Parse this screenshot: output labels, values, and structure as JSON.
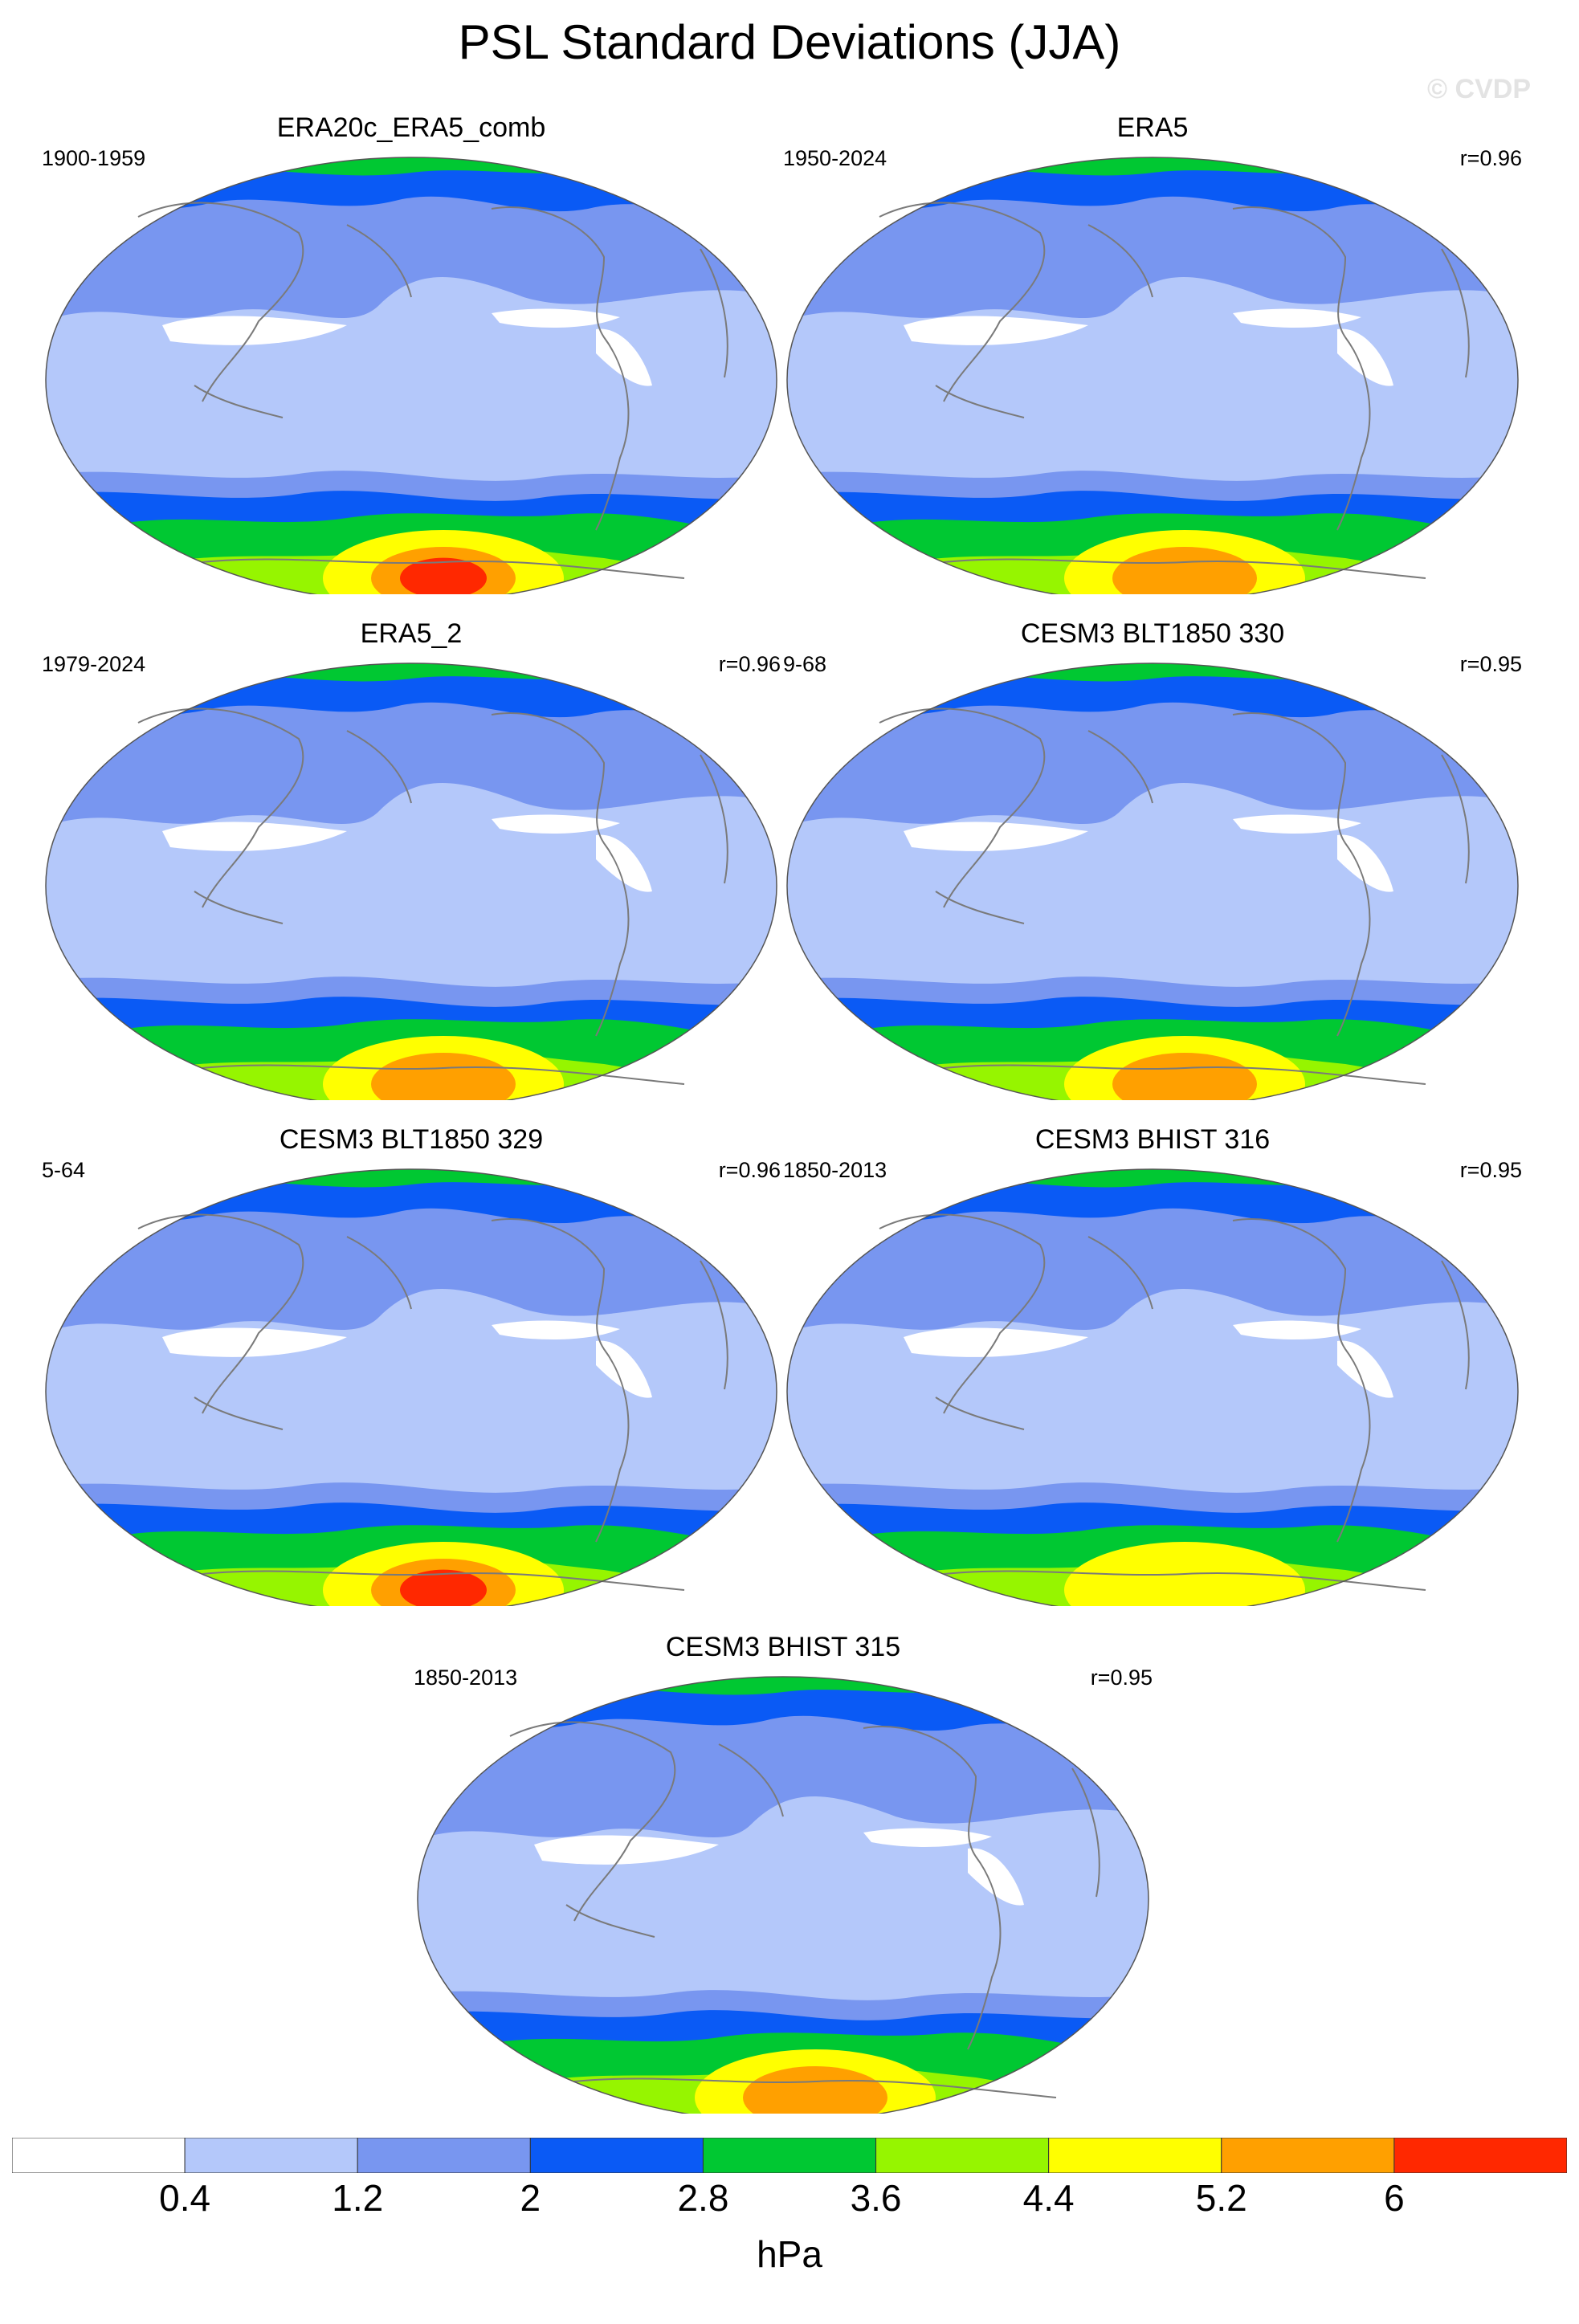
{
  "title": "PSL Standard Deviations (JJA)",
  "watermark": "© CVDP",
  "panels": [
    {
      "title": "ERA20c_ERA5_comb",
      "years": "1900-1959",
      "corr": ""
    },
    {
      "title": "ERA5",
      "years": "1950-2024",
      "corr": "r=0.96"
    },
    {
      "title": "ERA5_2",
      "years": "1979-2024",
      "corr": "r=0.96"
    },
    {
      "title": "CESM3 BLT1850 330",
      "years": "9-68",
      "corr": "r=0.95"
    },
    {
      "title": "CESM3 BLT1850 329",
      "years": "5-64",
      "corr": "r=0.96"
    },
    {
      "title": "CESM3 BHIST 316",
      "years": "1850-2013",
      "corr": "r=0.95"
    },
    {
      "title": "CESM3 BHIST 315",
      "years": "1850-2013",
      "corr": "r=0.95"
    }
  ],
  "colorbar": {
    "unit": "hPa",
    "labels": [
      "0.4",
      "1.2",
      "2",
      "2.8",
      "3.6",
      "4.4",
      "5.2",
      "6"
    ],
    "colors": [
      "#ffffff",
      "#b4c8fa",
      "#7896f0",
      "#0a5af5",
      "#00c832",
      "#96f500",
      "#ffff00",
      "#ffa000",
      "#ff2800"
    ]
  }
}
